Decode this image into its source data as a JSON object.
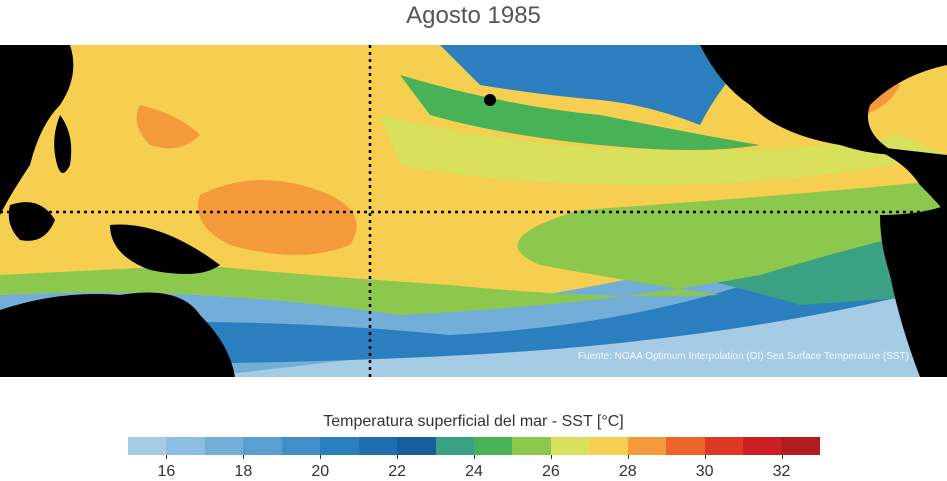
{
  "title": "Agosto 1985",
  "source_note": "Fuente: NOAA Optimum Interpolation (OI) Sea Surface Temperature (SST)",
  "colorbar": {
    "title": "Temperatura superficial del mar - SST  [°C]",
    "tick_labels": [
      "16",
      "18",
      "20",
      "22",
      "24",
      "26",
      "28",
      "30",
      "32"
    ],
    "colors": [
      "#a6cbe5",
      "#8dbde0",
      "#73aed9",
      "#5a9fd2",
      "#408fc9",
      "#2b7fbf",
      "#1d6fb0",
      "#175f9b",
      "#3aa182",
      "#47b356",
      "#8cc84d",
      "#d8e05c",
      "#f6cf50",
      "#f59a3a",
      "#ee6529",
      "#dd3823",
      "#cc1f24",
      "#b21b1f"
    ]
  },
  "map": {
    "land_color": "#000000",
    "reference_lines": "equator and 180° meridian (dotted)"
  }
}
